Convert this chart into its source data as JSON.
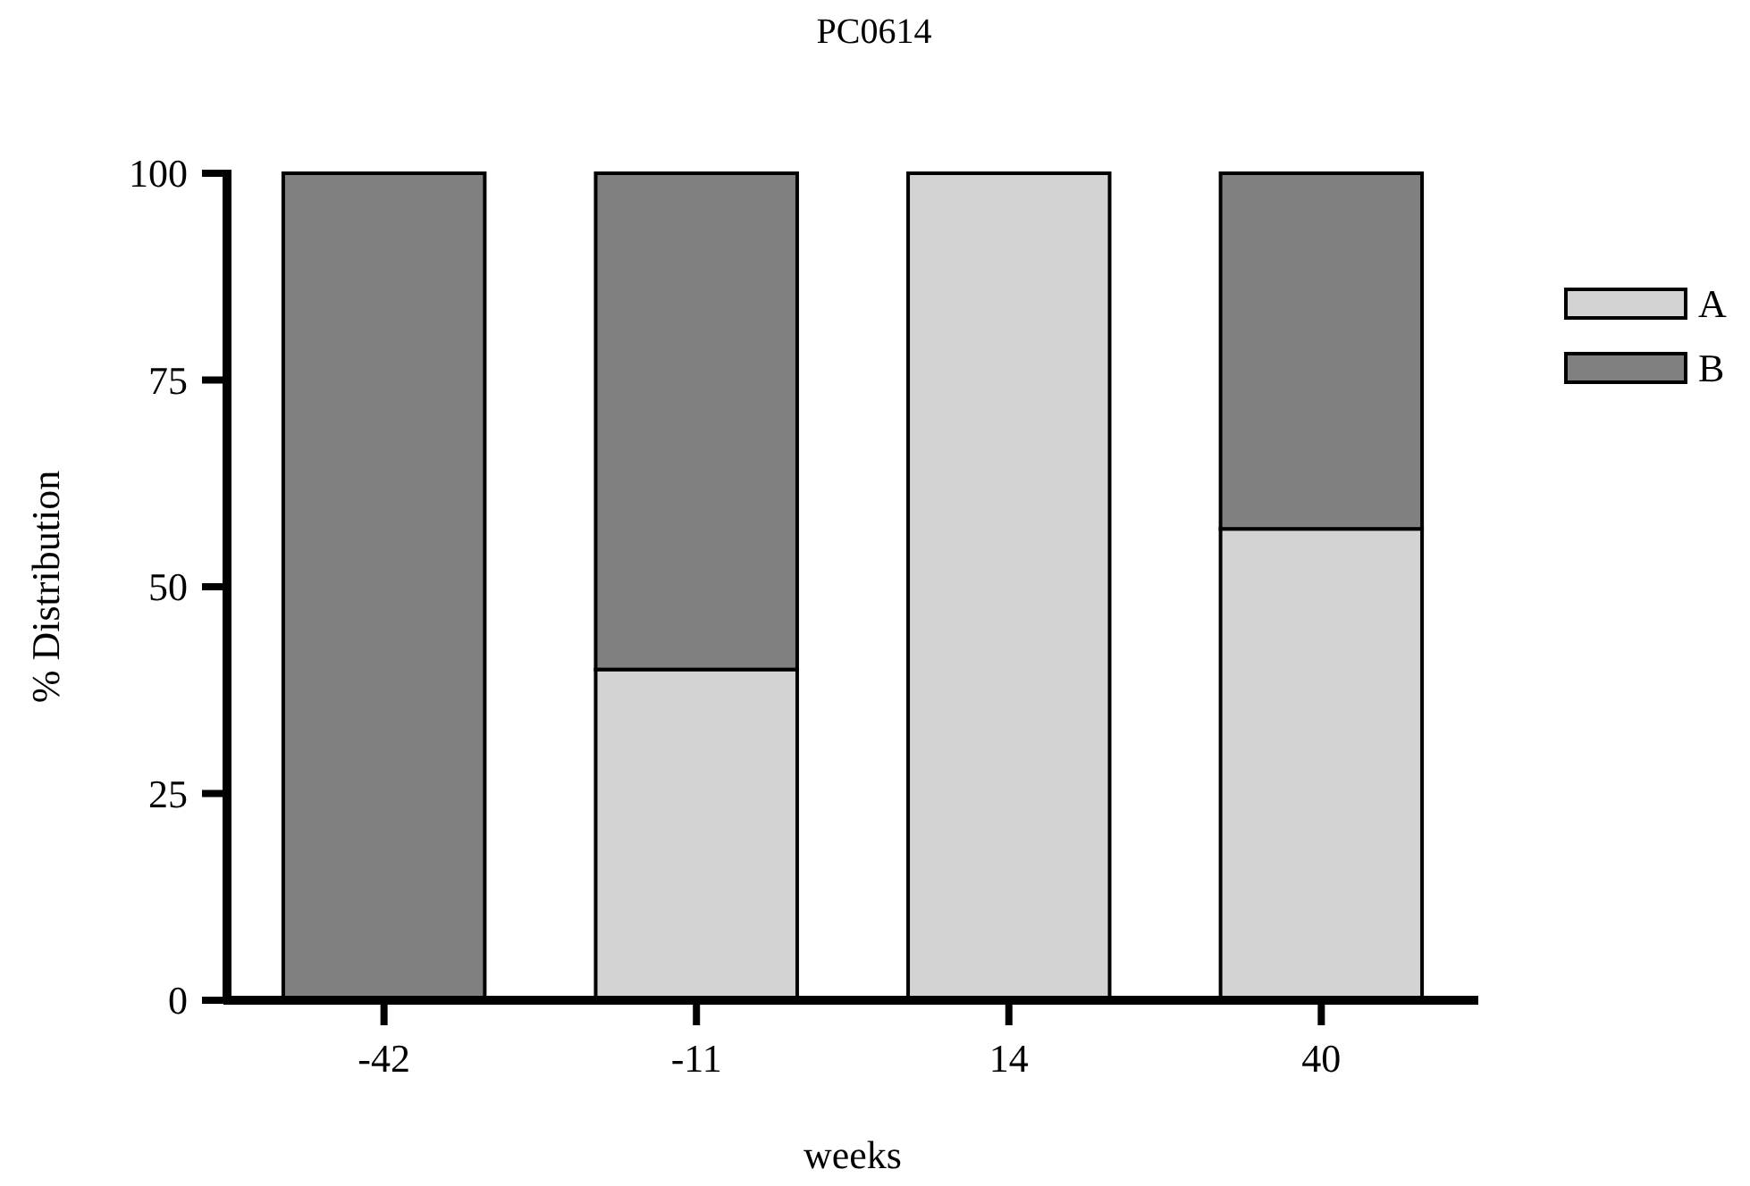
{
  "chart_data": {
    "type": "bar",
    "title": "PC0614",
    "xlabel": "weeks",
    "ylabel": "% Distribution",
    "categories": [
      "-42",
      "-11",
      "14",
      "40"
    ],
    "stacked": true,
    "series": [
      {
        "name": "A",
        "color": "#d3d3d3",
        "values": [
          0,
          40,
          100,
          57
        ]
      },
      {
        "name": "B",
        "color": "#808080",
        "values": [
          100,
          60,
          0,
          43
        ]
      }
    ],
    "ylim": [
      0,
      100
    ],
    "yticks": [
      0,
      25,
      50,
      75,
      100
    ],
    "grid": false,
    "legend": "top right"
  }
}
